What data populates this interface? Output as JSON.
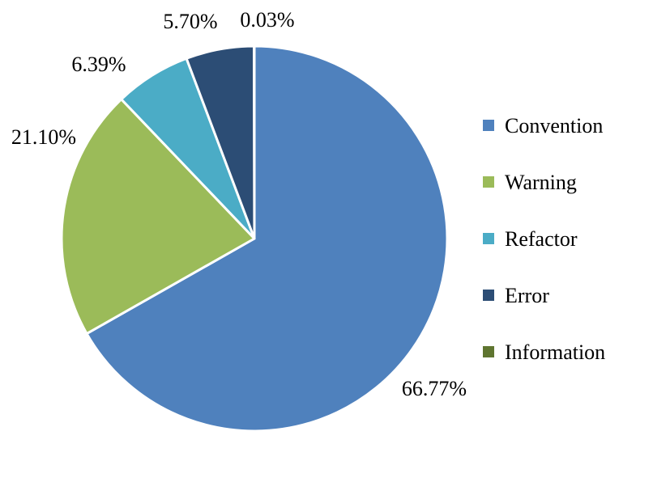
{
  "chart_data": {
    "type": "pie",
    "title": "",
    "slices": [
      {
        "name": "Convention",
        "value": 66.77,
        "label": "66.77%",
        "color": "#4f81bd"
      },
      {
        "name": "Warning",
        "value": 21.1,
        "label": "21.10%",
        "color": "#9bbb59"
      },
      {
        "name": "Refactor",
        "value": 6.39,
        "label": "6.39%",
        "color": "#4bacc6"
      },
      {
        "name": "Error",
        "value": 5.7,
        "label": "5.70%",
        "color": "#2c4d75"
      },
      {
        "name": "Information",
        "value": 0.03,
        "label": "0.03%",
        "color": "#5f7530"
      }
    ],
    "legend_position": "right"
  }
}
